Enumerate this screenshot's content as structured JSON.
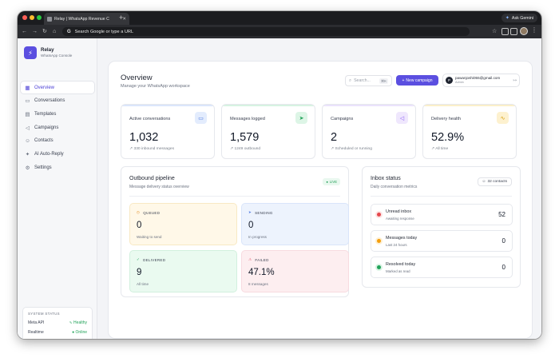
{
  "browser": {
    "tab_title": "Relay | WhatsApp Revenue C",
    "address": "Search Google or type a URL",
    "ask_label": "Ask Gemini"
  },
  "sidebar": {
    "brand_name": "Relay",
    "brand_sub": "WhatsApp Console",
    "items": [
      {
        "label": "Overview",
        "icon": "grid-icon"
      },
      {
        "label": "Conversations",
        "icon": "chat-icon"
      },
      {
        "label": "Templates",
        "icon": "document-icon"
      },
      {
        "label": "Campaigns",
        "icon": "megaphone-icon"
      },
      {
        "label": "Contacts",
        "icon": "users-icon"
      },
      {
        "label": "AI Auto-Reply",
        "icon": "sparkle-icon"
      },
      {
        "label": "Settings",
        "icon": "gear-icon"
      }
    ],
    "system_status": {
      "title": "SYSTEM STATUS",
      "rows": [
        {
          "label": "Meta API",
          "value": "Healthy"
        },
        {
          "label": "Realtime",
          "value": "Online"
        }
      ]
    }
  },
  "header": {
    "title": "Overview",
    "subtitle": "Manage your WhatsApp workspace",
    "search_placeholder": "Search...",
    "search_shortcut": "⌘K",
    "new_campaign": "New campaign",
    "user_initial": "P",
    "user_email": "pawanjoshi055@gmail.com",
    "user_role": "Admin"
  },
  "stats": [
    {
      "label": "Active conversations",
      "value": "1,032",
      "sub": "330 inbound messages",
      "icon": "chat-icon",
      "color": "#4f7be0"
    },
    {
      "label": "Messages logged",
      "value": "1,579",
      "sub": "1249 outbound",
      "icon": "send-icon",
      "color": "#22a35a"
    },
    {
      "label": "Campaigns",
      "value": "2",
      "sub": "Scheduled or running",
      "icon": "megaphone-icon",
      "color": "#8b5cf6"
    },
    {
      "label": "Delivery health",
      "value": "52.9%",
      "sub": "All time",
      "icon": "pulse-icon",
      "color": "#e0a400"
    }
  ],
  "pipeline": {
    "title": "Outbound pipeline",
    "subtitle": "Message delivery status overview",
    "live": "LIVE",
    "tiles": [
      {
        "label": "QUEUED",
        "value": "0",
        "sub": "Waiting to send",
        "color": "#e08a1e"
      },
      {
        "label": "SENDING",
        "value": "0",
        "sub": "In progress",
        "color": "#4f7be0"
      },
      {
        "label": "DELIVERED",
        "value": "9",
        "sub": "All time",
        "color": "#22a35a"
      },
      {
        "label": "FAILED",
        "value": "47.1%",
        "sub": "8 messages",
        "color": "#e0475b"
      }
    ]
  },
  "inbox": {
    "title": "Inbox status",
    "subtitle": "Daily conversation metrics",
    "contacts": "32 contacts",
    "rows": [
      {
        "label": "Unread inbox",
        "sub": "Awaiting response",
        "value": "52",
        "color": "#e5484d"
      },
      {
        "label": "Messages today",
        "sub": "Last 24 hours",
        "value": "0",
        "color": "#f59e0b"
      },
      {
        "label": "Resolved today",
        "sub": "Marked as read",
        "value": "0",
        "color": "#22a35a"
      }
    ]
  }
}
